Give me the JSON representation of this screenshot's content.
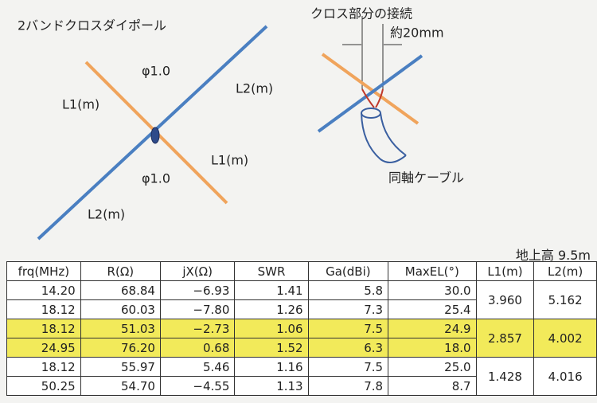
{
  "title": "2バンドクロスダイポール",
  "diagram": {
    "labels": [
      "φ1.0",
      "L2(m)",
      "L1(m)",
      "L1(m)",
      "φ1.0",
      "L2(m)"
    ]
  },
  "detail": {
    "title": "クロス部分の接続",
    "gap": "約20mm",
    "cable": "同軸ケーブル"
  },
  "table": {
    "caption": "地上高 9.5m",
    "columns": [
      "frq(MHz)",
      "R(Ω)",
      "jX(Ω)",
      "SWR",
      "Ga(dBi)",
      "MaxEL(°)",
      "L1(m)",
      "L2(m)"
    ],
    "groups": [
      {
        "rows": [
          [
            "14.20",
            "68.84",
            "−6.93",
            "1.41",
            "5.8",
            "30.0"
          ],
          [
            "18.12",
            "60.03",
            "−7.80",
            "1.26",
            "7.3",
            "25.4"
          ]
        ],
        "L1": "3.960",
        "L2": "5.162"
      },
      {
        "rows": [
          [
            "18.12",
            "51.03",
            "−2.73",
            "1.06",
            "7.5",
            "24.9"
          ],
          [
            "24.95",
            "76.20",
            "0.68",
            "1.52",
            "6.3",
            "18.0"
          ]
        ],
        "L1": "2.857",
        "L2": "4.002"
      },
      {
        "rows": [
          [
            "18.12",
            "55.97",
            "5.46",
            "1.16",
            "7.5",
            "25.0"
          ],
          [
            "50.25",
            "54.70",
            "−4.55",
            "1.13",
            "7.8",
            "8.7"
          ]
        ],
        "L1": "1.428",
        "L2": "4.016"
      }
    ]
  }
}
